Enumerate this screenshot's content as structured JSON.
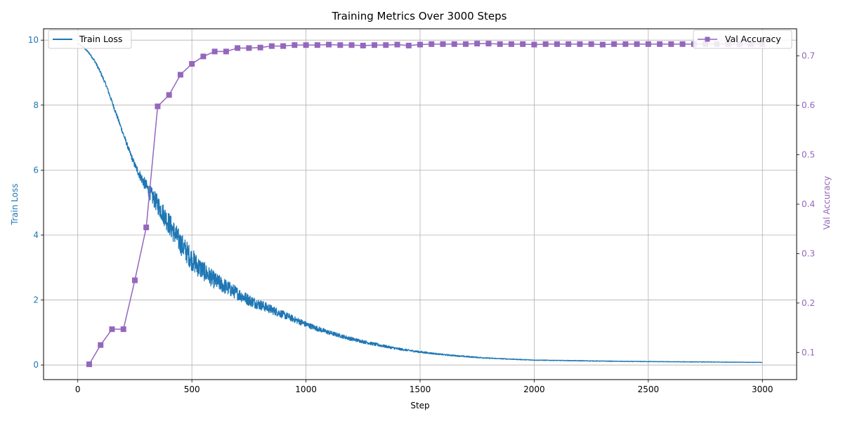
{
  "chart_data": {
    "type": "line",
    "title": "Training Metrics Over 3000 Steps",
    "xlabel": "Step",
    "xlim": [
      -150,
      3150
    ],
    "xticks": [
      0,
      500,
      1000,
      1500,
      2000,
      2500,
      3000
    ],
    "grid": true,
    "colors": {
      "train_loss": "#1f77b4",
      "val_accuracy": "#9467bd"
    },
    "y_left": {
      "label": "Train Loss",
      "lim": [
        -0.45,
        10.35
      ],
      "ticks": [
        0,
        2,
        4,
        6,
        8,
        10
      ]
    },
    "y_right": {
      "label": "Val Accuracy",
      "lim": [
        0.045,
        0.755
      ],
      "ticks": [
        0.1,
        0.2,
        0.3,
        0.4,
        0.5,
        0.6,
        0.7
      ]
    },
    "series": [
      {
        "name": "Train Loss",
        "axis": "left",
        "marker": "none",
        "legend_position": "upper left",
        "x": [
          1,
          25,
          50,
          75,
          100,
          125,
          150,
          175,
          200,
          225,
          250,
          275,
          300,
          325,
          350,
          375,
          400,
          425,
          450,
          475,
          500,
          525,
          550,
          575,
          600,
          625,
          650,
          675,
          700,
          725,
          750,
          775,
          800,
          825,
          850,
          875,
          900,
          925,
          950,
          975,
          1000,
          1050,
          1100,
          1150,
          1200,
          1250,
          1300,
          1350,
          1400,
          1450,
          1500,
          1600,
          1700,
          1800,
          1900,
          2000,
          2200,
          2400,
          2600,
          2800,
          3000
        ],
        "y": [
          9.9,
          9.78,
          9.6,
          9.35,
          9.0,
          8.6,
          8.1,
          7.6,
          7.1,
          6.6,
          6.15,
          5.8,
          5.5,
          5.2,
          4.95,
          4.65,
          4.35,
          4.05,
          3.75,
          3.5,
          3.25,
          3.05,
          2.9,
          2.75,
          2.6,
          2.5,
          2.4,
          2.3,
          2.2,
          2.1,
          2.0,
          1.92,
          1.85,
          1.78,
          1.7,
          1.63,
          1.55,
          1.48,
          1.4,
          1.33,
          1.25,
          1.12,
          1.0,
          0.9,
          0.8,
          0.72,
          0.64,
          0.57,
          0.5,
          0.45,
          0.4,
          0.32,
          0.26,
          0.21,
          0.18,
          0.15,
          0.13,
          0.11,
          0.1,
          0.09,
          0.08
        ],
        "noise": [
          0.0,
          0.02,
          0.03,
          0.04,
          0.05,
          0.05,
          0.06,
          0.06,
          0.07,
          0.08,
          0.1,
          0.15,
          0.2,
          0.25,
          0.3,
          0.32,
          0.35,
          0.35,
          0.35,
          0.35,
          0.35,
          0.33,
          0.3,
          0.28,
          0.26,
          0.25,
          0.24,
          0.22,
          0.2,
          0.19,
          0.18,
          0.17,
          0.16,
          0.15,
          0.14,
          0.13,
          0.12,
          0.11,
          0.1,
          0.1,
          0.09,
          0.08,
          0.07,
          0.06,
          0.06,
          0.05,
          0.05,
          0.04,
          0.04,
          0.03,
          0.03,
          0.02,
          0.02,
          0.015,
          0.012,
          0.01,
          0.01,
          0.008,
          0.008,
          0.007,
          0.006
        ]
      },
      {
        "name": "Val Accuracy",
        "axis": "right",
        "marker": "square",
        "legend_position": "upper right",
        "x": [
          50,
          100,
          150,
          200,
          250,
          300,
          350,
          400,
          450,
          500,
          550,
          600,
          650,
          700,
          750,
          800,
          850,
          900,
          950,
          1000,
          1050,
          1100,
          1150,
          1200,
          1250,
          1300,
          1350,
          1400,
          1450,
          1500,
          1550,
          1600,
          1650,
          1700,
          1750,
          1800,
          1850,
          1900,
          1950,
          2000,
          2050,
          2100,
          2150,
          2200,
          2250,
          2300,
          2350,
          2400,
          2450,
          2500,
          2550,
          2600,
          2650,
          2700,
          2750,
          2800,
          2850,
          2900,
          2950,
          3000
        ],
        "y": [
          0.076,
          0.115,
          0.147,
          0.147,
          0.246,
          0.353,
          0.598,
          0.621,
          0.662,
          0.684,
          0.699,
          0.709,
          0.709,
          0.716,
          0.716,
          0.717,
          0.72,
          0.72,
          0.722,
          0.722,
          0.722,
          0.723,
          0.722,
          0.722,
          0.721,
          0.722,
          0.722,
          0.723,
          0.721,
          0.723,
          0.724,
          0.724,
          0.724,
          0.724,
          0.725,
          0.725,
          0.724,
          0.724,
          0.724,
          0.723,
          0.724,
          0.724,
          0.724,
          0.724,
          0.724,
          0.723,
          0.724,
          0.724,
          0.724,
          0.724,
          0.724,
          0.724,
          0.724,
          0.724,
          0.724,
          0.724,
          0.724,
          0.724,
          0.724,
          0.724
        ]
      }
    ]
  }
}
